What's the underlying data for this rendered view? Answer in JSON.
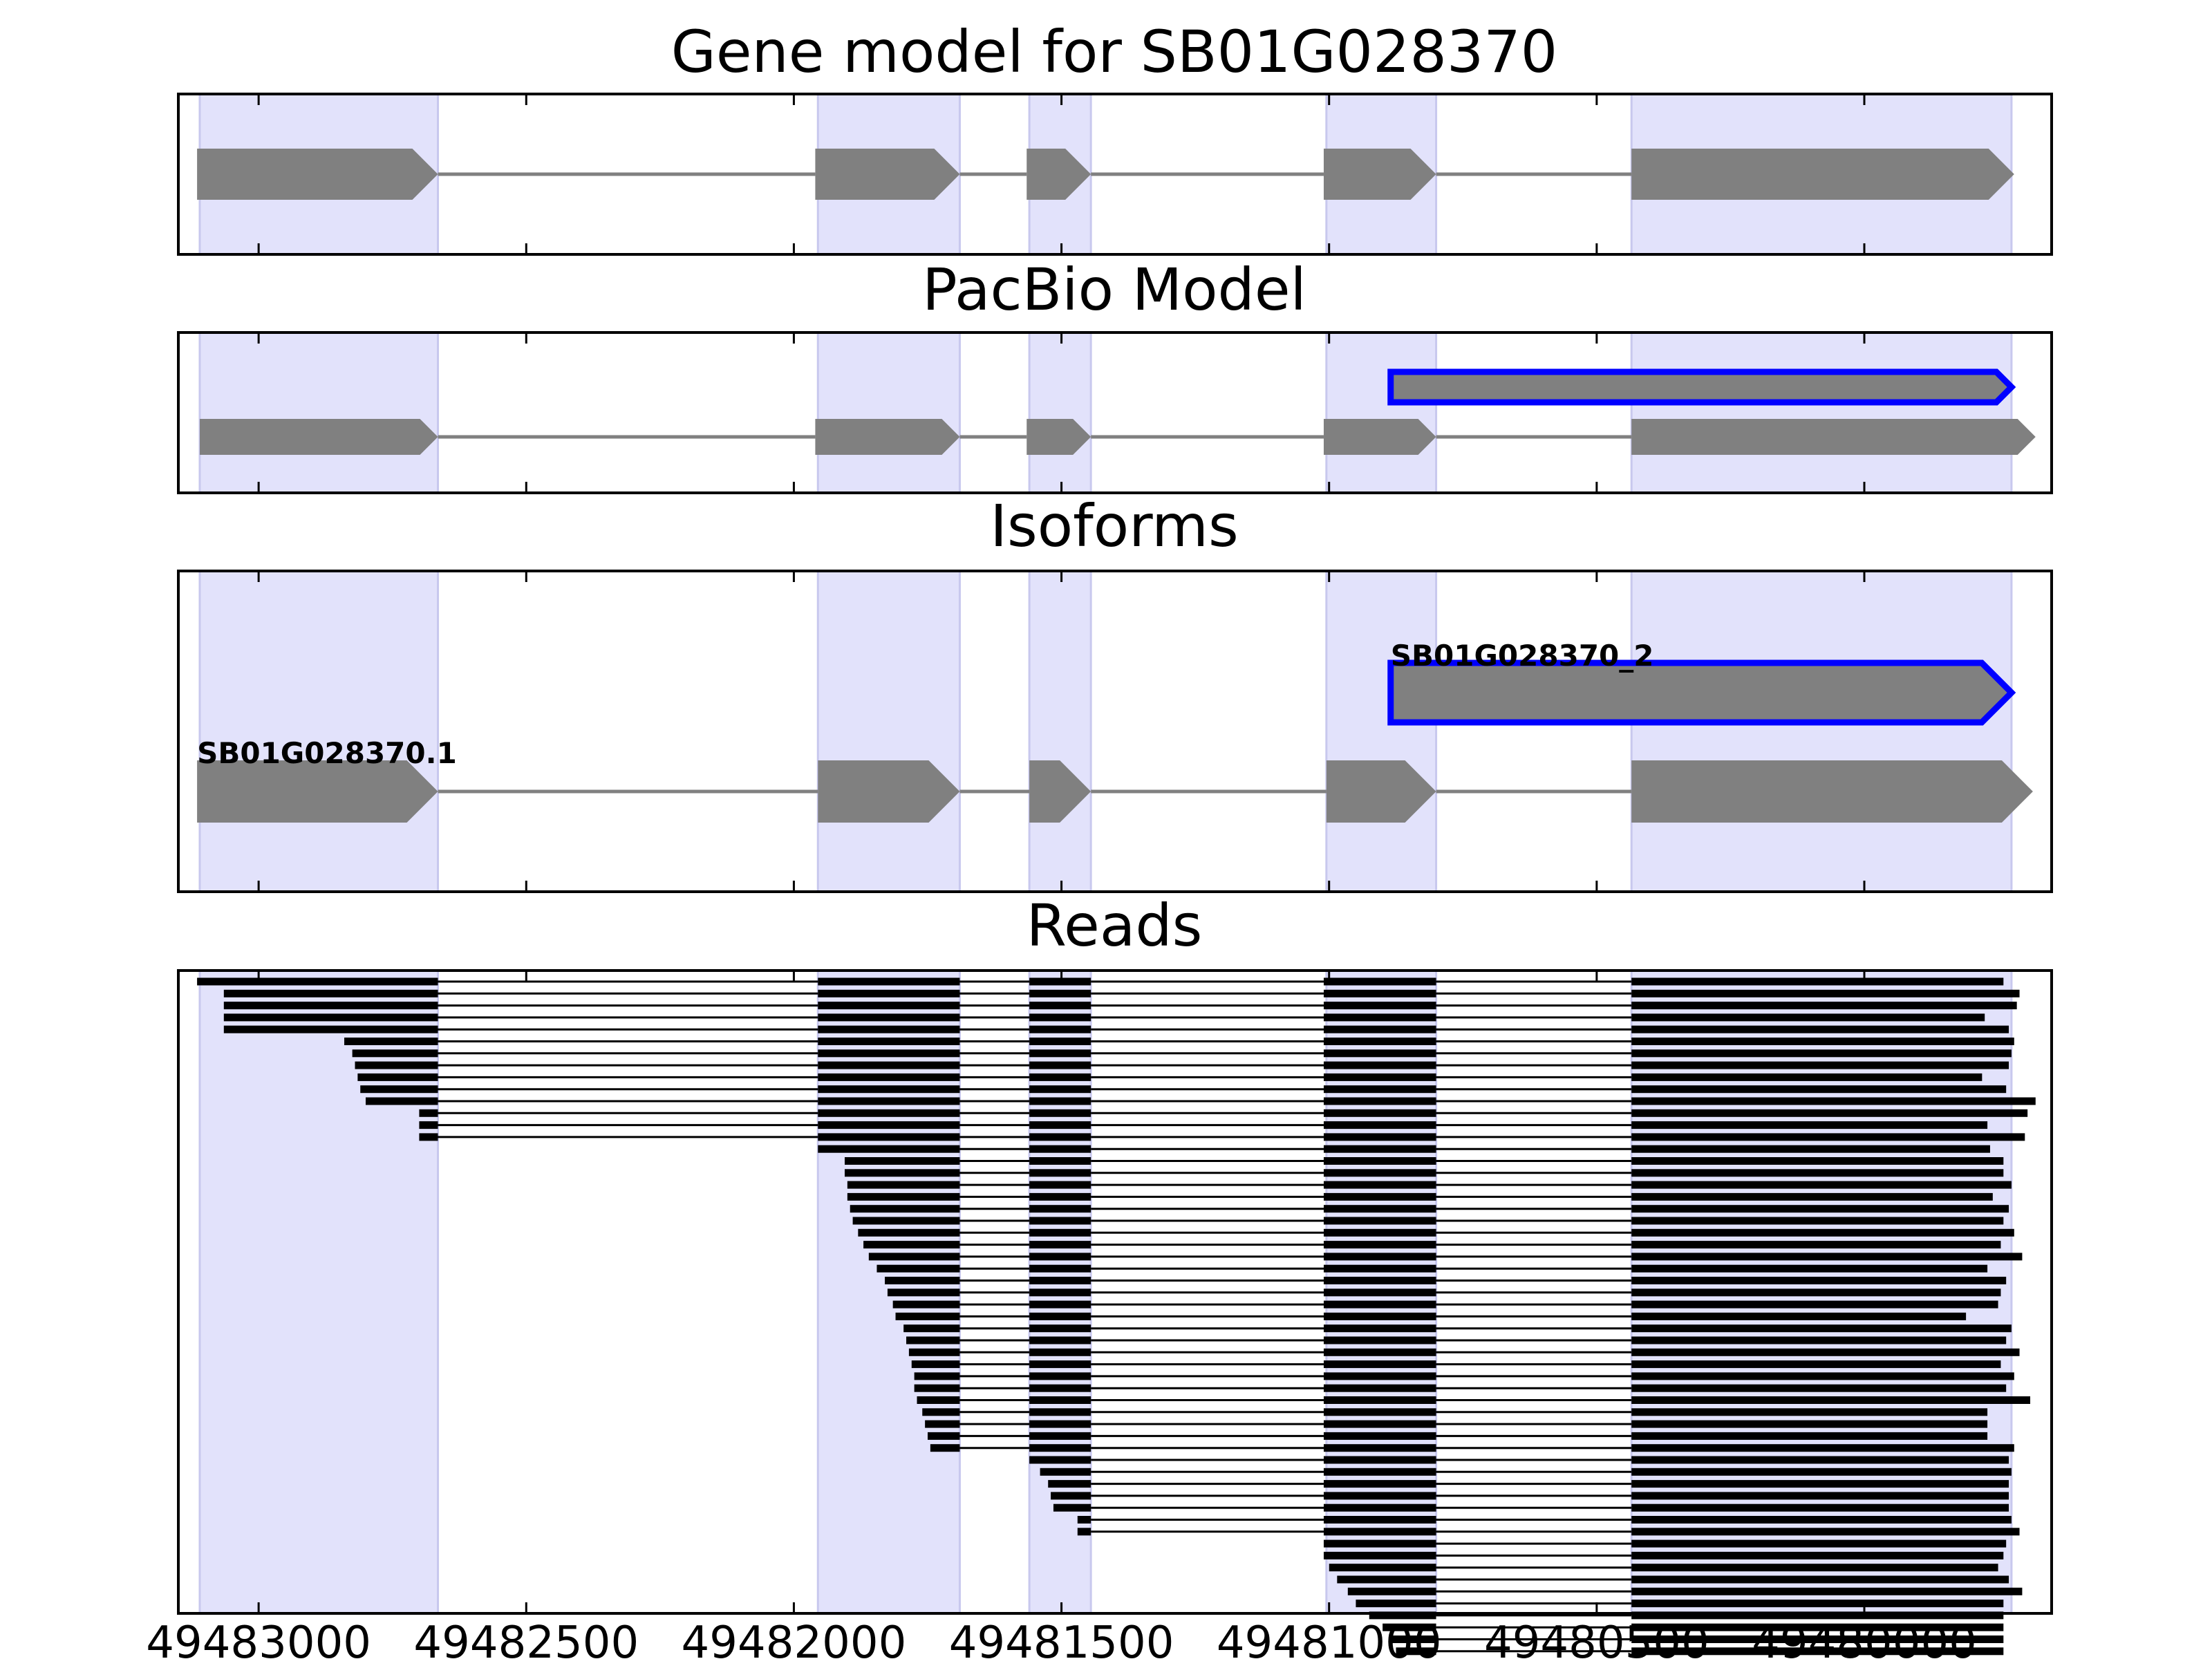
{
  "titles": {
    "gene_model": "Gene model for SB01G028370",
    "pacbio": "PacBio Model",
    "isoforms": "Isoforms",
    "reads": "Reads"
  },
  "colors": {
    "exon_fill": "#808080",
    "intron_line": "#808080",
    "highlight_band": "#e2e2fb",
    "new_isoform_outline": "#0000ff",
    "read_color": "#000000",
    "frame": "#000000"
  },
  "chart_data": {
    "type": "gene-structure",
    "x_axis": {
      "reversed": true,
      "domain": [
        49483150,
        49479650
      ],
      "ticks": [
        49483000,
        49482500,
        49482000,
        49481500,
        49481000,
        49480500,
        49480000
      ],
      "tick_labels": [
        "49483000",
        "49482500",
        "49482000",
        "49481500",
        "49481000",
        "49480500",
        "49480000"
      ]
    },
    "exon_regions": [
      [
        49483110,
        49482665
      ],
      [
        49481955,
        49481690
      ],
      [
        49481560,
        49481445
      ],
      [
        49481005,
        49480800
      ],
      [
        49480435,
        49479725
      ]
    ],
    "gene_model": {
      "exons": [
        [
          49483115,
          49482665
        ],
        [
          49481960,
          49481690
        ],
        [
          49481565,
          49481445
        ],
        [
          49481010,
          49480800
        ],
        [
          49480435,
          49479720
        ]
      ]
    },
    "pacbio_model": {
      "main": {
        "exons": [
          [
            49483110,
            49482665
          ],
          [
            49481960,
            49481690
          ],
          [
            49481565,
            49481445
          ],
          [
            49481010,
            49480800
          ],
          [
            49480435,
            49479680
          ]
        ]
      },
      "novel": {
        "exons": [
          [
            49480885,
            49479725
          ]
        ]
      }
    },
    "isoforms": [
      {
        "label": "SB01G028370.1",
        "novel": false,
        "exons": [
          [
            49483115,
            49482665
          ],
          [
            49481955,
            49481690
          ],
          [
            49481560,
            49481445
          ],
          [
            49481005,
            49480800
          ],
          [
            49480435,
            49479685
          ]
        ]
      },
      {
        "label": "SB01G028370_2",
        "novel": true,
        "exons": [
          [
            49480885,
            49479725
          ]
        ]
      }
    ],
    "reads": {
      "group1": {
        "count": 14,
        "tail_end": 49479740,
        "starts": [
          49483115,
          49483065,
          49483065,
          49483065,
          49483065,
          49482840,
          49482825,
          49482820,
          49482815,
          49482810,
          49482800,
          49482700,
          49482700,
          49482700
        ]
      },
      "group2": {
        "count": 26,
        "tail_end": 49479740,
        "starts": [
          49481955,
          49481905,
          49481905,
          49481900,
          49481900,
          49481895,
          49481890,
          49481880,
          49481870,
          49481860,
          49481845,
          49481830,
          49481825,
          49481815,
          49481810,
          49481795,
          49481790,
          49481785,
          49481780,
          49481775,
          49481775,
          49481770,
          49481760,
          49481755,
          49481750,
          49481745
        ]
      },
      "group3": {
        "count": 7,
        "tail_end": 49479740,
        "starts": [
          49481560,
          49481540,
          49481525,
          49481520,
          49481515,
          49481470,
          49481470
        ]
      },
      "group4": {
        "count": 12,
        "tail_end": 49479740,
        "starts": [
          49481010,
          49481010,
          49481000,
          49480985,
          49480965,
          49480950,
          49480925,
          49480900,
          49480885,
          49480875,
          49480860,
          49480845
        ]
      },
      "group5": {
        "count": 3,
        "tail_end": 49479725,
        "starts": [
          49480435,
          49480415,
          49480400
        ]
      },
      "end_offsets": [
        0,
        -30,
        -25,
        35,
        -10,
        -20,
        -15,
        -10,
        40,
        -5,
        -60,
        -45,
        30,
        -40,
        25,
        0,
        0,
        -15,
        20,
        -10,
        0,
        -20,
        5,
        -35,
        30,
        -5,
        5,
        10,
        70,
        -15,
        -5,
        -30,
        5,
        -20,
        -5,
        -50,
        30,
        30,
        30,
        -20,
        -10,
        -15,
        -10,
        -10,
        -10,
        -15,
        -30,
        -5,
        0,
        10,
        -10,
        -35
      ]
    }
  }
}
